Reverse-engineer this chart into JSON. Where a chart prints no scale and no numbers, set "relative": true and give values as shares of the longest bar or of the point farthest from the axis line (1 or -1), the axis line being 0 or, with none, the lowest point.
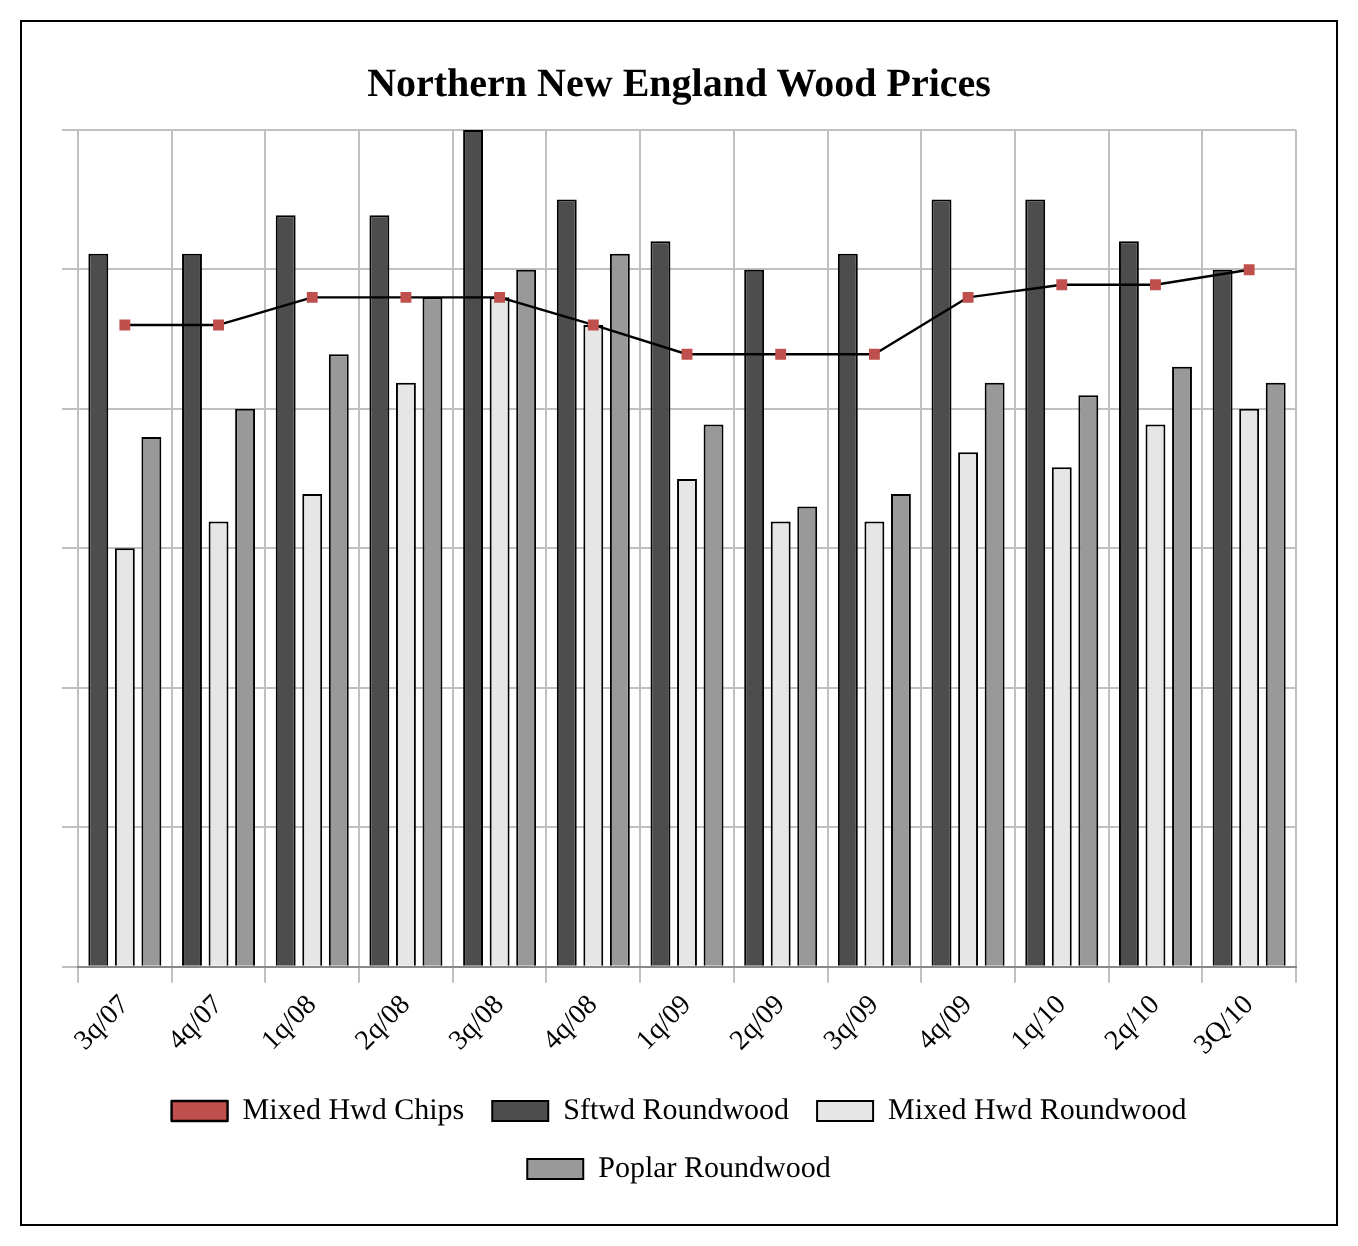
{
  "chart_data": {
    "type": "bar",
    "title": "Northern New England Wood Prices",
    "relative": true,
    "grid": true,
    "legend": "bottom",
    "marker": "square",
    "categories": [
      "3q/07",
      "4q/07",
      "1q/08",
      "2q/08",
      "3q/08",
      "4q/08",
      "1q/09",
      "2q/09",
      "3q/09",
      "4q/09",
      "1q/10",
      "2q/10",
      "3Q/10"
    ],
    "series": [
      {
        "name": "Sftwd Roundwood",
        "color": "#4d4d4d",
        "values": [
          0.852,
          0.852,
          0.898,
          0.898,
          1,
          0.917,
          0.867,
          0.833,
          0.852,
          0.917,
          0.917,
          0.867,
          0.833
        ]
      },
      {
        "name": "Mixed Hwd Roundwood",
        "color": "#e6e6e6",
        "values": [
          0.5,
          0.532,
          0.565,
          0.698,
          0.8,
          0.767,
          0.583,
          0.532,
          0.532,
          0.615,
          0.597,
          0.648,
          0.667
        ]
      },
      {
        "name": "Poplar Roundwood",
        "color": "#999999",
        "values": [
          0.633,
          0.667,
          0.732,
          0.8,
          0.833,
          0.852,
          0.648,
          0.55,
          0.565,
          0.698,
          0.683,
          0.717,
          0.698
        ]
      },
      {
        "name": "Mixed Hwd Chips",
        "type": "line",
        "color": "#c0504d",
        "values": [
          0.767,
          0.767,
          0.8,
          0.8,
          0.8,
          0.767,
          0.732,
          0.732,
          0.732,
          0.8,
          0.815,
          0.815,
          0.833
        ]
      }
    ]
  }
}
